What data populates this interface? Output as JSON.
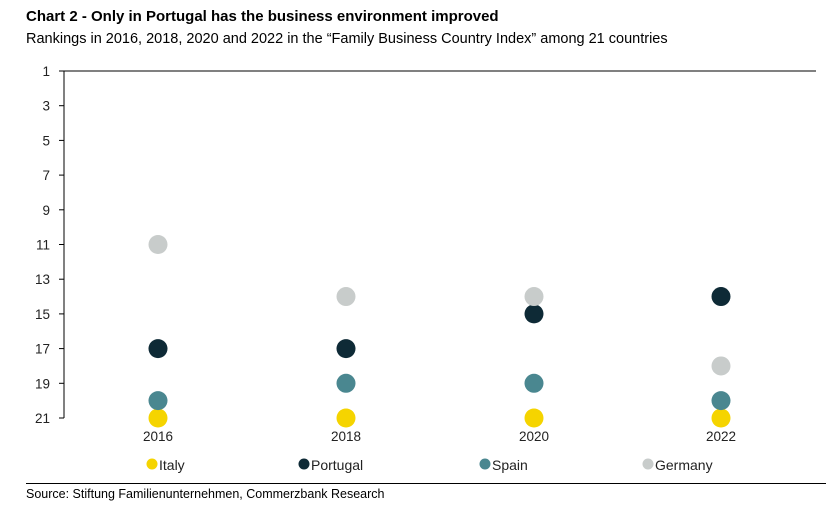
{
  "chart_data": {
    "type": "scatter",
    "title": "Chart 2 - Only in Portugal has the business environment improved",
    "subtitle": "Rankings in 2016, 2018, 2020 and 2022 in the “Family Business Country Index” among 21 countries",
    "source": "Source: Stiftung Familienunternehmen, Commerzbank Research",
    "categories": [
      "2016",
      "2018",
      "2020",
      "2022"
    ],
    "y_ticks": [
      "1",
      "3",
      "5",
      "7",
      "9",
      "11",
      "13",
      "15",
      "17",
      "19",
      "21"
    ],
    "ylim": [
      1,
      21
    ],
    "y_inverted": true,
    "legend_position": "bottom",
    "series": [
      {
        "name": "Italy",
        "color": "#f5d400",
        "values": [
          21,
          21,
          21,
          21
        ]
      },
      {
        "name": "Portugal",
        "color": "#0e2a36",
        "values": [
          17,
          17,
          15,
          14
        ]
      },
      {
        "name": "Spain",
        "color": "#4a8790",
        "values": [
          20,
          19,
          19,
          20
        ]
      },
      {
        "name": "Germany",
        "color": "#c8cccb",
        "values": [
          11,
          14,
          14,
          18
        ]
      }
    ]
  }
}
